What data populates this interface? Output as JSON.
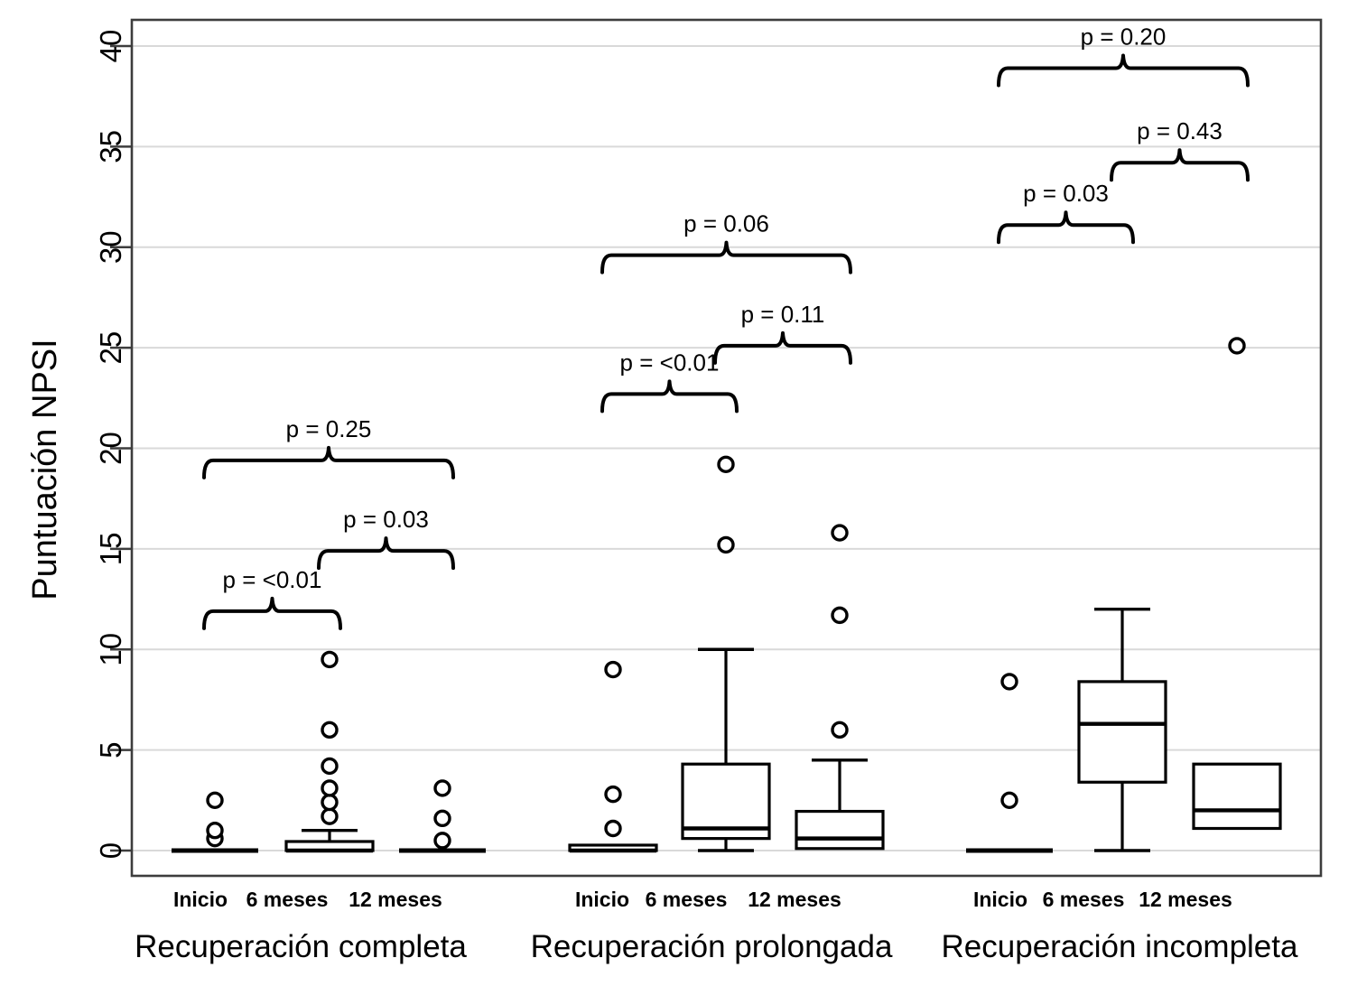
{
  "chart_data": {
    "type": "boxplot",
    "title": "",
    "ylabel": "Puntuación NPSI",
    "xlabel": "",
    "ylim": [
      0,
      40
    ],
    "yticks": [
      0,
      5,
      10,
      15,
      20,
      25,
      30,
      35,
      40
    ],
    "grid": true,
    "legend": "none",
    "series_labels": [
      "Inicio",
      "6 meses",
      "12 meses"
    ],
    "groups": [
      {
        "label": "Recuperación completa",
        "boxes": [
          {
            "timepoint": "Inicio",
            "q1": 0,
            "median": 0,
            "q3": 0,
            "whisker_low": 0,
            "whisker_high": 0,
            "outliers": [
              0.6,
              1.0,
              2.5
            ]
          },
          {
            "timepoint": "6 meses",
            "q1": 0,
            "median": 0,
            "q3": 0.45,
            "whisker_low": 0,
            "whisker_high": 1.0,
            "outliers": [
              1.7,
              2.4,
              3.1,
              4.2,
              6.0,
              9.5
            ]
          },
          {
            "timepoint": "12 meses",
            "q1": 0,
            "median": 0,
            "q3": 0,
            "whisker_low": 0,
            "whisker_high": 0,
            "outliers": [
              0.5,
              1.6,
              3.1
            ]
          }
        ],
        "comparisons": [
          {
            "between": [
              "Inicio",
              "6 meses"
            ],
            "label": "p = <0.01",
            "height": 11.9
          },
          {
            "between": [
              "6 meses",
              "12 meses"
            ],
            "label": "p = 0.03",
            "height": 14.9
          },
          {
            "between": [
              "Inicio",
              "12 meses"
            ],
            "label": "p = 0.25",
            "height": 19.4
          }
        ]
      },
      {
        "label": "Recuperación prolongada",
        "boxes": [
          {
            "timepoint": "Inicio",
            "q1": 0,
            "median": 0,
            "q3": 0.27,
            "whisker_low": 0,
            "whisker_high": 0.27,
            "outliers": [
              1.1,
              2.8,
              9.0
            ]
          },
          {
            "timepoint": "6 meses",
            "q1": 0.6,
            "median": 1.1,
            "q3": 4.3,
            "whisker_low": 0,
            "whisker_high": 10.0,
            "outliers": [
              15.2,
              19.2
            ]
          },
          {
            "timepoint": "12 meses",
            "q1": 0.1,
            "median": 0.6,
            "q3": 1.95,
            "whisker_low": 0.1,
            "whisker_high": 4.5,
            "outliers": [
              6.0,
              11.7,
              15.8
            ]
          }
        ],
        "comparisons": [
          {
            "between": [
              "Inicio",
              "6 meses"
            ],
            "label": "p = <0.01",
            "height": 22.7
          },
          {
            "between": [
              "6 meses",
              "12 meses"
            ],
            "label": "p = 0.11",
            "height": 25.1
          },
          {
            "between": [
              "Inicio",
              "12 meses"
            ],
            "label": "p = 0.06",
            "height": 29.6
          }
        ]
      },
      {
        "label": "Recuperación incompleta",
        "boxes": [
          {
            "timepoint": "Inicio",
            "q1": 0,
            "median": 0,
            "q3": 0,
            "whisker_low": 0,
            "whisker_high": 0,
            "outliers": [
              2.5,
              8.4
            ]
          },
          {
            "timepoint": "6 meses",
            "q1": 3.4,
            "median": 6.3,
            "q3": 8.4,
            "whisker_low": 0,
            "whisker_high": 12.0,
            "outliers": []
          },
          {
            "timepoint": "12 meses",
            "q1": 1.1,
            "median": 2.0,
            "q3": 4.3,
            "whisker_low": 1.1,
            "whisker_high": 4.3,
            "outliers": [
              25.1
            ]
          }
        ],
        "comparisons": [
          {
            "between": [
              "Inicio",
              "6 meses"
            ],
            "label": "p = 0.03",
            "height": 31.1
          },
          {
            "between": [
              "6 meses",
              "12 meses"
            ],
            "label": "p = 0.43",
            "height": 34.2
          },
          {
            "between": [
              "Inicio",
              "12 meses"
            ],
            "label": "p = 0.20",
            "height": 38.9
          }
        ]
      }
    ],
    "colors": {
      "ink": "#000000",
      "grid": "#d9d9d9",
      "frame": "#3d3d3d",
      "background": "#ffffff"
    }
  }
}
